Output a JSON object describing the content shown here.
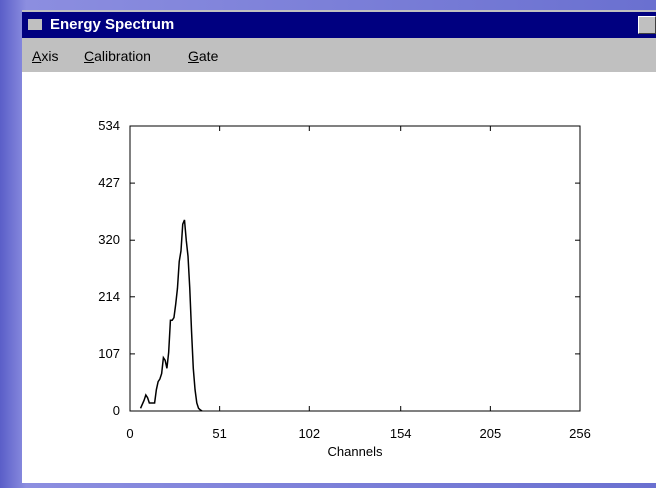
{
  "window": {
    "title": "Energy Spectrum"
  },
  "menu": [
    "Axis",
    "Calibration",
    "Gate"
  ],
  "chart_data": {
    "type": "line",
    "xlabel": "Channels",
    "x": [
      6,
      8,
      9,
      10,
      11,
      13,
      14,
      15,
      16,
      17,
      18,
      19,
      20,
      21,
      22,
      23,
      24,
      25,
      26,
      27,
      28,
      29,
      30,
      31,
      32,
      33,
      34,
      35,
      36,
      37,
      38,
      39,
      40,
      41
    ],
    "values": [
      5,
      20,
      30,
      25,
      15,
      15,
      15,
      40,
      55,
      60,
      70,
      100,
      95,
      80,
      110,
      170,
      170,
      175,
      200,
      230,
      280,
      300,
      350,
      358,
      320,
      290,
      230,
      150,
      80,
      40,
      15,
      5,
      2,
      0
    ],
    "color": "#000000",
    "xlim": [
      0,
      256
    ],
    "xticks": [
      0,
      51,
      102,
      154,
      205,
      256
    ],
    "ylim": [
      0,
      534
    ],
    "yticks": [
      0,
      107,
      214,
      320,
      427,
      534
    ]
  }
}
